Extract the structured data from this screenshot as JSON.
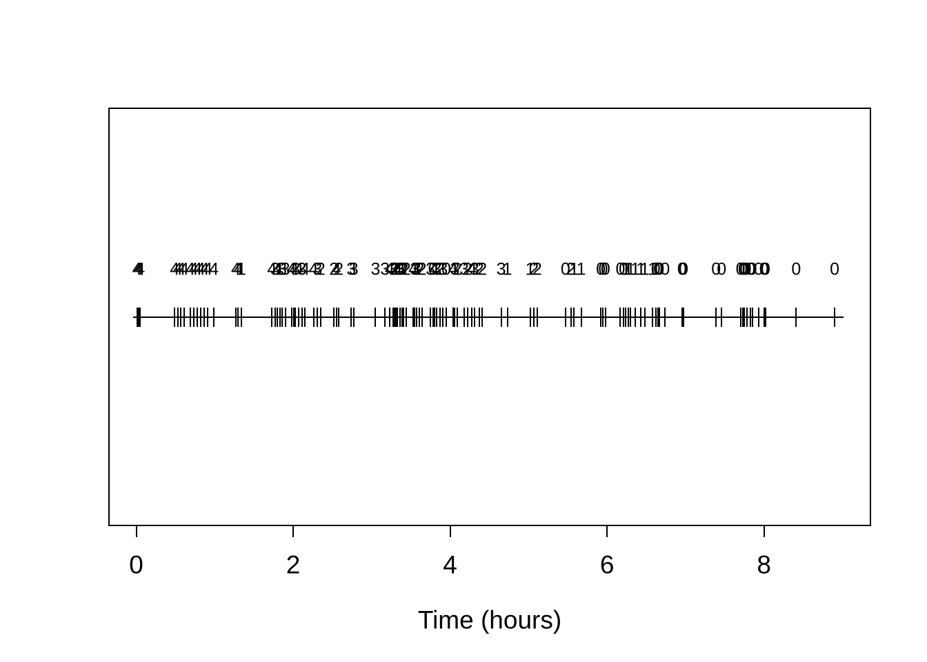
{
  "chart_data": {
    "type": "scatter",
    "subtype": "event-timeline-rug",
    "title": "",
    "xlabel": "Time (hours)",
    "ylabel": "",
    "xlim": [
      -0.35,
      9.35
    ],
    "x_ticks": [
      0,
      2,
      4,
      6,
      8
    ],
    "grid": false,
    "legend": false,
    "description": "Horizontal timeline with a tick mark at each event time; the number printed above each tick is the process count/state at that event (values overlap heavily).",
    "timeline_range": [
      -0.04,
      9.01
    ],
    "events": [
      [
        0.01,
        "4"
      ],
      [
        0.03,
        "4"
      ],
      [
        0.05,
        "4"
      ],
      [
        0.49,
        "4"
      ],
      [
        0.53,
        "4"
      ],
      [
        0.57,
        "4"
      ],
      [
        0.61,
        "4"
      ],
      [
        0.69,
        "4"
      ],
      [
        0.73,
        "4"
      ],
      [
        0.78,
        "4"
      ],
      [
        0.82,
        "4"
      ],
      [
        0.87,
        "4"
      ],
      [
        0.91,
        "4"
      ],
      [
        0.99,
        "4"
      ],
      [
        1.27,
        "4"
      ],
      [
        1.3,
        "4"
      ],
      [
        1.34,
        "1"
      ],
      [
        1.73,
        "4"
      ],
      [
        1.77,
        "3"
      ],
      [
        1.8,
        "4"
      ],
      [
        1.83,
        "1"
      ],
      [
        1.86,
        "3"
      ],
      [
        1.9,
        "3"
      ],
      [
        1.98,
        "4"
      ],
      [
        2.01,
        "4"
      ],
      [
        2.03,
        "3"
      ],
      [
        2.07,
        "4"
      ],
      [
        2.11,
        "3"
      ],
      [
        2.15,
        "4"
      ],
      [
        2.26,
        "4"
      ],
      [
        2.31,
        "3"
      ],
      [
        2.35,
        "2"
      ],
      [
        2.52,
        "2"
      ],
      [
        2.55,
        "4"
      ],
      [
        2.58,
        "2"
      ],
      [
        2.74,
        "3"
      ],
      [
        2.77,
        "3"
      ],
      [
        3.05,
        "3"
      ],
      [
        3.17,
        "3"
      ],
      [
        3.23,
        "4"
      ],
      [
        3.27,
        "3"
      ],
      [
        3.29,
        "2"
      ],
      [
        3.31,
        "2"
      ],
      [
        3.33,
        "4"
      ],
      [
        3.36,
        "3"
      ],
      [
        3.39,
        "3"
      ],
      [
        3.41,
        "2"
      ],
      [
        3.44,
        "2"
      ],
      [
        3.53,
        "4"
      ],
      [
        3.55,
        "3"
      ],
      [
        3.57,
        "3"
      ],
      [
        3.61,
        "2"
      ],
      [
        3.64,
        "2"
      ],
      [
        3.75,
        "3"
      ],
      [
        3.78,
        "0"
      ],
      [
        3.8,
        "4"
      ],
      [
        3.83,
        "3"
      ],
      [
        3.87,
        "2"
      ],
      [
        3.91,
        "3"
      ],
      [
        3.95,
        "0"
      ],
      [
        4.04,
        "4"
      ],
      [
        4.06,
        "3"
      ],
      [
        4.09,
        "2"
      ],
      [
        4.18,
        "3"
      ],
      [
        4.22,
        "2"
      ],
      [
        4.28,
        "4"
      ],
      [
        4.31,
        "3"
      ],
      [
        4.37,
        "2"
      ],
      [
        4.41,
        "2"
      ],
      [
        4.65,
        "3"
      ],
      [
        4.73,
        "1"
      ],
      [
        5.02,
        "1"
      ],
      [
        5.07,
        "2"
      ],
      [
        5.11,
        "2"
      ],
      [
        5.47,
        "0"
      ],
      [
        5.54,
        "2"
      ],
      [
        5.58,
        "1"
      ],
      [
        5.67,
        "1"
      ],
      [
        5.92,
        "0"
      ],
      [
        5.95,
        "0"
      ],
      [
        5.98,
        "0"
      ],
      [
        6.17,
        "0"
      ],
      [
        6.21,
        "0"
      ],
      [
        6.24,
        "1"
      ],
      [
        6.27,
        "1"
      ],
      [
        6.3,
        "1"
      ],
      [
        6.36,
        "1"
      ],
      [
        6.43,
        "1"
      ],
      [
        6.48,
        "1"
      ],
      [
        6.58,
        "1"
      ],
      [
        6.62,
        "0"
      ],
      [
        6.65,
        "0"
      ],
      [
        6.67,
        "0"
      ],
      [
        6.74,
        "0"
      ],
      [
        6.955,
        "0"
      ],
      [
        6.975,
        "0"
      ],
      [
        7.39,
        "0"
      ],
      [
        7.46,
        "0"
      ],
      [
        7.7,
        "0"
      ],
      [
        7.73,
        "0"
      ],
      [
        7.75,
        "0"
      ],
      [
        7.78,
        "0"
      ],
      [
        7.83,
        "0"
      ],
      [
        7.85,
        "0"
      ],
      [
        7.93,
        "0"
      ],
      [
        8.0,
        "0"
      ],
      [
        8.02,
        "0"
      ],
      [
        8.41,
        "0"
      ],
      [
        8.9,
        "0"
      ]
    ]
  },
  "colors": {
    "ink": "#000000",
    "background": "#ffffff"
  }
}
